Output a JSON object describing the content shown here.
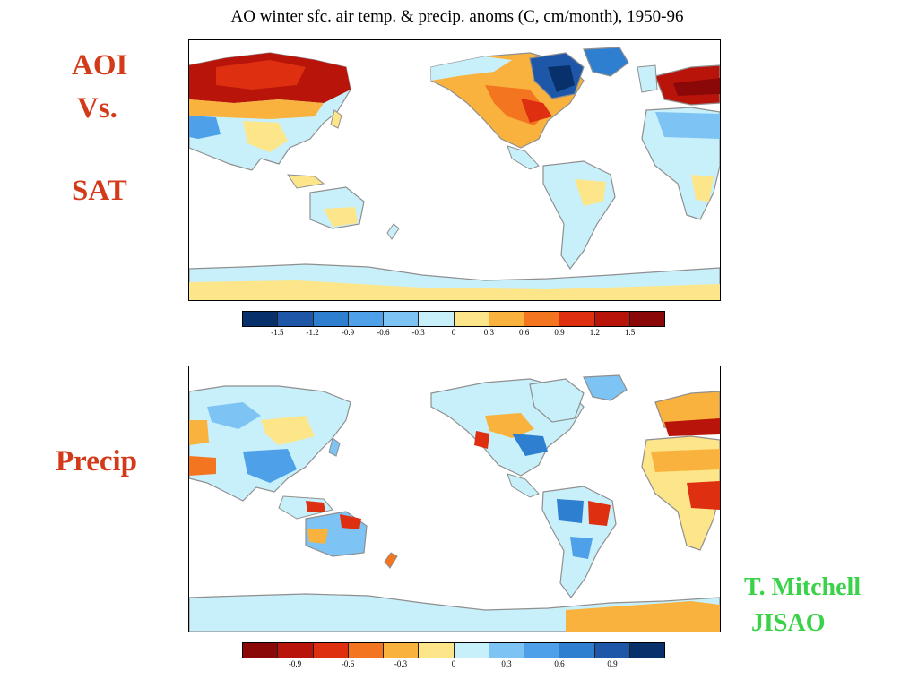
{
  "title": "AO winter sfc. air temp. & precip. anoms (C, cm/month), 1950-96",
  "labels": {
    "aoi": "AOI",
    "vs": "Vs.",
    "sat": "SAT",
    "precip": "Precip"
  },
  "credit": {
    "line1": "T. Mitchell",
    "line2": "JISAO"
  },
  "temp_legend": {
    "colors": [
      "#08306b",
      "#1f57a8",
      "#2f7fd0",
      "#4ea1e8",
      "#7dc3f4",
      "#c8f0fb",
      "#fde58a",
      "#f9b23d",
      "#f4751f",
      "#de2f10",
      "#b8140a",
      "#8a0808"
    ],
    "ticks": [
      "-1.5",
      "-1.2",
      "-0.9",
      "-0.6",
      "-0.3",
      "0",
      "0.3",
      "0.6",
      "0.9",
      "1.2",
      "1.5"
    ]
  },
  "precip_legend": {
    "colors": [
      "#8a0808",
      "#b8140a",
      "#de2f10",
      "#f4751f",
      "#f9b23d",
      "#fde58a",
      "#c8f0fb",
      "#7dc3f4",
      "#4ea1e8",
      "#2f7fd0",
      "#1f57a8",
      "#08306b"
    ],
    "ticks": [
      "-0.9",
      "-0.6",
      "-0.3",
      "0",
      "0.3",
      "0.6",
      "0.9"
    ]
  }
}
